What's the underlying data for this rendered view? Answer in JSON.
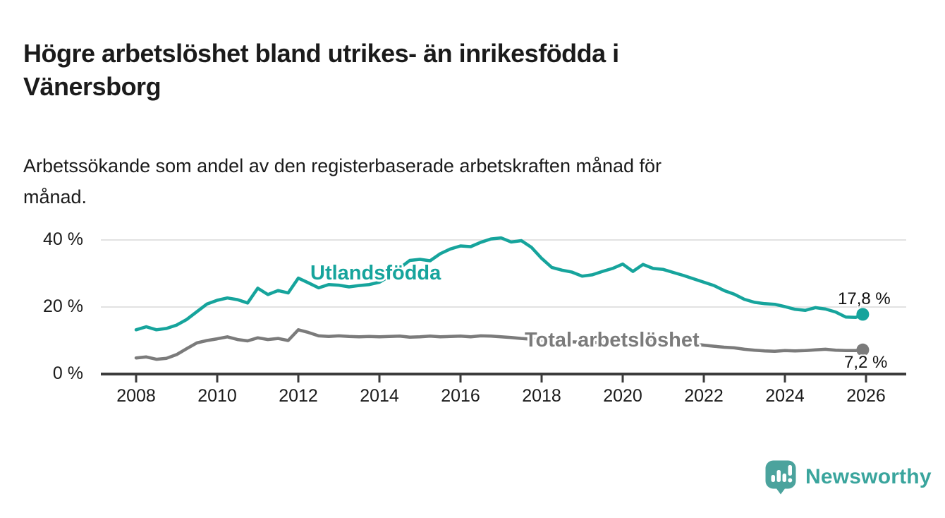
{
  "header": {
    "title": "Högre arbetslöshet bland utrikes- än inrikesfödda i\nVänersborg",
    "subtitle": "Arbetssökande som andel av den registerbaserade arbetskraften månad för\nmånad."
  },
  "colors": {
    "accent_teal": "#16a49c",
    "series_gray": "#7b7b7b",
    "text_dark": "#1b1b1b",
    "gridline": "#d9d9d9",
    "axis": "#3b3b3b",
    "logo_icon": "#4ba39d",
    "logo_text": "#3aa59d"
  },
  "chart_data": {
    "type": "line",
    "title": "Högre arbetslöshet bland utrikes- än inrikesfödda i Vänersborg",
    "subtitle": "Arbetssökande som andel av den registerbaserade arbetskraften månad för månad.",
    "xlabel": "",
    "ylabel": "",
    "grid": "horizontal",
    "legend_position": "inline-labels",
    "xlim": [
      2007.1,
      2027.0
    ],
    "ylim": [
      0,
      44
    ],
    "x_ticks": {
      "values": [
        2008,
        2010,
        2012,
        2014,
        2016,
        2018,
        2020,
        2022,
        2024,
        2026
      ],
      "labels": [
        "2008",
        "2010",
        "2012",
        "2014",
        "2016",
        "2018",
        "2020",
        "2022",
        "2024",
        "2026"
      ]
    },
    "y_ticks": {
      "values": [
        0,
        20,
        40
      ],
      "labels": [
        "0 %",
        "20 %",
        "40 %"
      ]
    },
    "x": [
      2008,
      2008.25,
      2008.5,
      2008.75,
      2009,
      2009.25,
      2009.5,
      2009.75,
      2010,
      2010.25,
      2010.5,
      2010.75,
      2011,
      2011.25,
      2011.5,
      2011.75,
      2012,
      2012.25,
      2012.5,
      2012.75,
      2013,
      2013.25,
      2013.5,
      2013.75,
      2014,
      2014.25,
      2014.5,
      2014.75,
      2015,
      2015.25,
      2015.5,
      2015.75,
      2016,
      2016.25,
      2016.5,
      2016.75,
      2017,
      2017.25,
      2017.5,
      2017.75,
      2018,
      2018.25,
      2018.5,
      2018.75,
      2019,
      2019.25,
      2019.5,
      2019.75,
      2020,
      2020.25,
      2020.5,
      2020.75,
      2021,
      2021.25,
      2021.5,
      2021.75,
      2022,
      2022.25,
      2022.5,
      2022.75,
      2023,
      2023.25,
      2023.5,
      2023.75,
      2024,
      2024.25,
      2024.5,
      2024.75,
      2025,
      2025.25,
      2025.5,
      2025.75,
      2025.92
    ],
    "series": [
      {
        "name": "Utlandsfödda",
        "color": "#16a49c",
        "end_label": "17,8 %",
        "end_value": 17.8,
        "values": [
          13.2,
          14.1,
          13.2,
          13.6,
          14.6,
          16.3,
          18.6,
          20.9,
          22.0,
          22.7,
          22.2,
          21.2,
          25.6,
          23.7,
          24.9,
          24.2,
          28.6,
          27.2,
          25.7,
          26.7,
          26.5,
          26.0,
          26.4,
          26.7,
          27.4,
          29.2,
          31.6,
          33.9,
          34.2,
          33.8,
          35.9,
          37.3,
          38.2,
          38.0,
          39.3,
          40.3,
          40.6,
          39.4,
          39.8,
          37.8,
          34.5,
          31.8,
          31.0,
          30.4,
          29.2,
          29.6,
          30.6,
          31.5,
          32.8,
          30.6,
          32.7,
          31.5,
          31.2,
          30.3,
          29.4,
          28.4,
          27.4,
          26.4,
          24.9,
          23.8,
          22.3,
          21.4,
          21.0,
          20.8,
          20.1,
          19.3,
          19.0,
          19.8,
          19.4,
          18.5,
          17.0,
          16.9,
          17.8
        ]
      },
      {
        "name": "Total arbetslöshet",
        "color": "#7b7b7b",
        "end_label": "7,2 %",
        "end_value": 7.2,
        "values": [
          4.8,
          5.1,
          4.4,
          4.7,
          5.8,
          7.6,
          9.3,
          10.0,
          10.5,
          11.1,
          10.3,
          9.9,
          10.8,
          10.3,
          10.6,
          10.0,
          13.2,
          12.4,
          11.4,
          11.2,
          11.4,
          11.2,
          11.1,
          11.2,
          11.1,
          11.2,
          11.3,
          11.0,
          11.1,
          11.3,
          11.1,
          11.2,
          11.3,
          11.1,
          11.4,
          11.3,
          11.1,
          10.9,
          10.6,
          10.4,
          10.1,
          9.9,
          9.7,
          9.6,
          9.5,
          9.4,
          9.5,
          9.7,
          10.1,
          10.7,
          10.5,
          10.3,
          10.1,
          9.8,
          9.4,
          9.0,
          8.6,
          8.3,
          8.0,
          7.8,
          7.4,
          7.1,
          6.9,
          6.8,
          7.0,
          6.9,
          7.0,
          7.2,
          7.4,
          7.1,
          7.0,
          7.0,
          7.2
        ]
      }
    ]
  },
  "footer": {
    "brand": "Newsworthy"
  }
}
